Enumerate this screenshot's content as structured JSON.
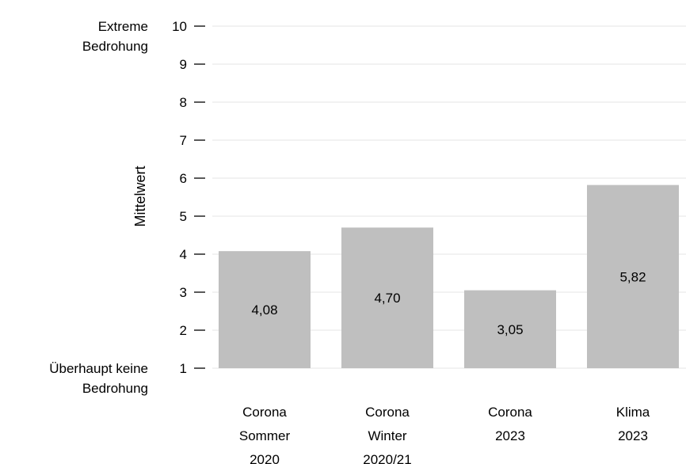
{
  "chart_data": {
    "type": "bar",
    "ylabel": "Mittelwert",
    "ylim": [
      1,
      10
    ],
    "yticks": [
      "1",
      "2",
      "3",
      "4",
      "5",
      "6",
      "7",
      "8",
      "9",
      "10"
    ],
    "grid": true,
    "scale_anchors": {
      "top": [
        "Extreme",
        "Bedrohung"
      ],
      "bottom": [
        "Überhaupt keine",
        "Bedrohung"
      ]
    },
    "categories": [
      [
        "Corona",
        "Sommer",
        "2020"
      ],
      [
        "Corona",
        "Winter",
        "2020/21"
      ],
      [
        "Corona",
        "2023"
      ],
      [
        "Klima",
        "2023"
      ]
    ],
    "values": [
      4.08,
      4.7,
      3.05,
      5.82
    ],
    "value_labels": [
      "4,08",
      "4,70",
      "3,05",
      "5,82"
    ],
    "bar_color": "#bfbfbf",
    "grid_color": "#e6e6e6"
  }
}
